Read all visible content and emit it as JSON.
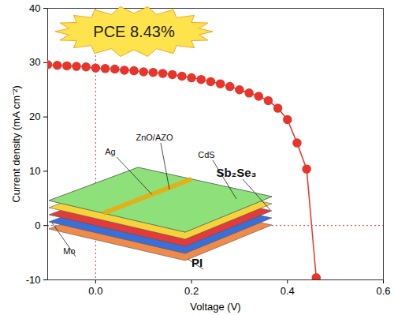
{
  "chart_data": {
    "type": "line",
    "x_label": "Voltage (V)",
    "y_label": "Current density (mA cm⁻²)",
    "x": [
      -0.1,
      -0.08,
      -0.06,
      -0.04,
      -0.02,
      0.0,
      0.02,
      0.04,
      0.06,
      0.08,
      0.1,
      0.12,
      0.14,
      0.16,
      0.18,
      0.2,
      0.22,
      0.24,
      0.26,
      0.28,
      0.3,
      0.32,
      0.34,
      0.36,
      0.38,
      0.4,
      0.42,
      0.44,
      0.46
    ],
    "values": [
      29.6,
      29.5,
      29.4,
      29.3,
      29.2,
      29.0,
      28.9,
      28.8,
      28.6,
      28.5,
      28.3,
      28.2,
      28.0,
      27.8,
      27.5,
      27.2,
      26.9,
      26.5,
      26.1,
      25.6,
      25.0,
      24.4,
      23.8,
      23.0,
      21.6,
      19.5,
      15.2,
      10.4,
      -9.6
    ],
    "color": "#e8352b",
    "marker": "circle",
    "line_style": "solid",
    "xlim": [
      -0.1,
      0.6
    ],
    "xticks": [
      {
        "value": 0,
        "label": "0.0"
      },
      0.2,
      0.4,
      0.6
    ],
    "ylim": [
      -10,
      40
    ],
    "yticks": [
      -10,
      0,
      10,
      20,
      30,
      40
    ],
    "grid": false,
    "reference_lines": [
      {
        "x": 0
      },
      {
        "y": 0
      }
    ],
    "annotations": {
      "badge": "PCE 8.43%",
      "schematic_labels": [
        "Ag",
        "ZnO/AZO",
        "CdS",
        "Sb₂Se₃",
        "Mo",
        "PI"
      ]
    }
  }
}
